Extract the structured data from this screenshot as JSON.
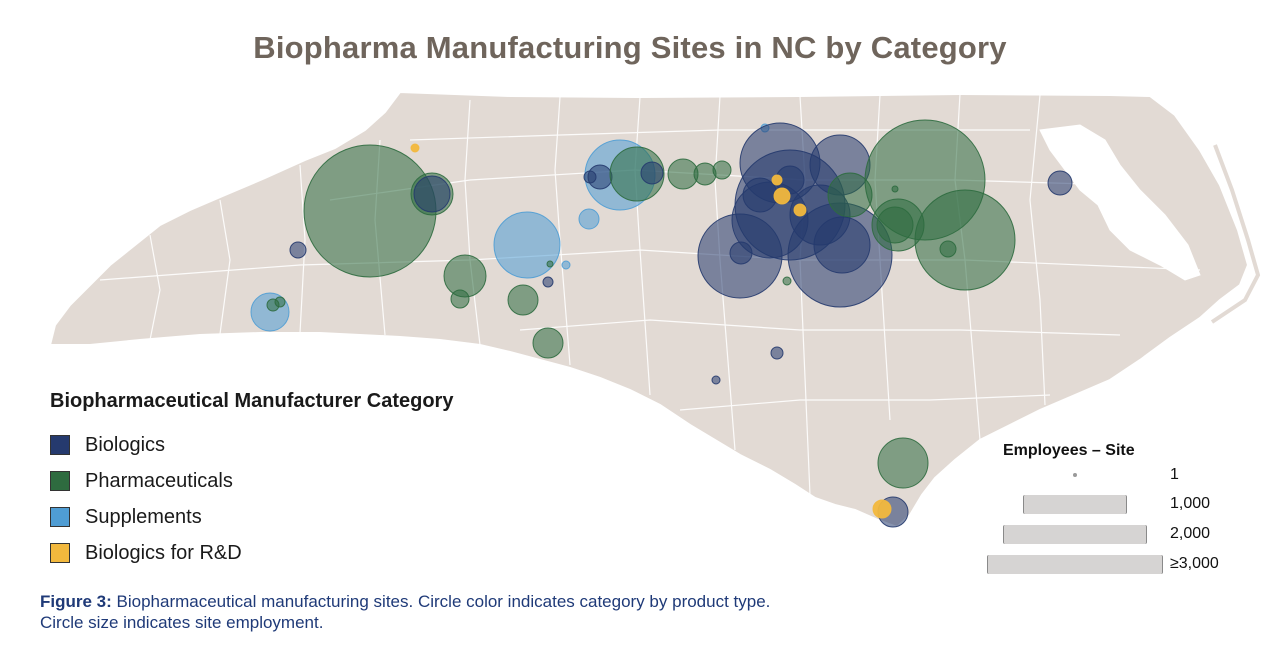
{
  "title": "Biopharma Manufacturing Sites in NC by Category",
  "legend": {
    "title": "Biopharmaceutical Manufacturer Category",
    "items": [
      {
        "label": "Biologics",
        "color": "#253a6e"
      },
      {
        "label": "Pharmaceuticals",
        "color": "#2e6b3f"
      },
      {
        "label": "Supplements",
        "color": "#4f9dd4"
      },
      {
        "label": "Biologics for R&D",
        "color": "#f2b83d"
      }
    ]
  },
  "size_legend": {
    "title": "Employees – Site",
    "entries": [
      {
        "label": "1",
        "employees": 1
      },
      {
        "label": "1,000",
        "employees": 1000
      },
      {
        "label": "2,000",
        "employees": 2000
      },
      {
        "label": "≥3,000",
        "employees": 3000
      }
    ]
  },
  "caption": {
    "lead": "Figure 3:",
    "line1": " Biopharmaceutical manufacturing sites. Circle color indicates category by product type.",
    "line2": "Circle size indicates site employment."
  },
  "map": {
    "region": "North Carolina",
    "fill_color": "#e2dad4",
    "border_color": "#ffffff"
  }
}
